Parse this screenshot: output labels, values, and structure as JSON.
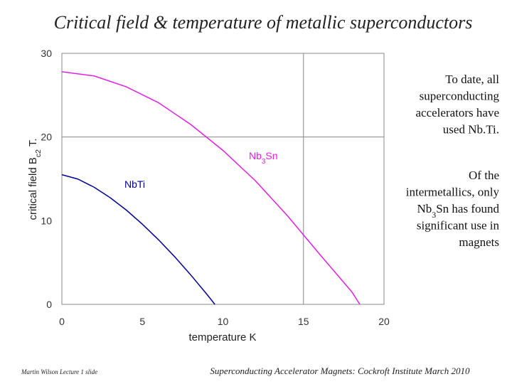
{
  "title": "Critical field & temperature of metallic superconductors",
  "chart_data": {
    "type": "line",
    "x_label": "temperature K",
    "y_label": [
      "critical field  B",
      "c2",
      "  T."
    ],
    "xlim": [
      0,
      20
    ],
    "ylim": [
      0,
      30
    ],
    "xticks": [
      0,
      5,
      10,
      15,
      20
    ],
    "yticks": [
      0,
      10,
      20,
      30
    ],
    "xgrid": [
      15
    ],
    "ygrid": [
      20
    ],
    "series": [
      {
        "name": [
          "NbTi"
        ],
        "color": "#000099",
        "x": [
          0,
          1,
          2,
          3,
          4,
          5,
          6,
          7,
          8,
          9,
          9.5
        ],
        "values": [
          15.5,
          14.97,
          14.0,
          12.75,
          11.27,
          9.58,
          7.72,
          5.7,
          3.52,
          1.21,
          0
        ]
      },
      {
        "name": [
          "Nb",
          "3",
          "Sn"
        ],
        "color": "#e020e0",
        "x": [
          0,
          2,
          4,
          6,
          8,
          10,
          12,
          14,
          16,
          18,
          18.5
        ],
        "values": [
          27.8,
          27.3,
          26.0,
          24.1,
          21.5,
          18.4,
          14.8,
          10.6,
          6.0,
          1.5,
          0
        ]
      }
    ]
  },
  "notes": [
    [
      "To date, all",
      "superconducting",
      "accelerators have",
      "used Nb.Ti."
    ],
    [
      "Of the",
      "intermetallics, only",
      [
        "Nb",
        "3",
        "Sn has  found"
      ],
      "significant use in",
      "magnets"
    ]
  ],
  "footer_left": "Martin Wilson Lecture 1 slide",
  "footer_right": "Superconducting Accelerator Magnets:  Cockroft Institute March 2010"
}
